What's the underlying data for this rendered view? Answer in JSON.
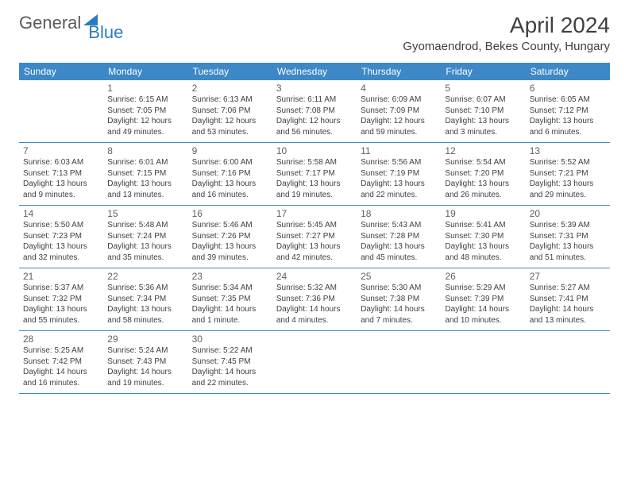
{
  "brand": {
    "part1": "General",
    "part2": "Blue"
  },
  "title": "April 2024",
  "location": "Gyomaendrod, Bekes County, Hungary",
  "day_headers": [
    "Sunday",
    "Monday",
    "Tuesday",
    "Wednesday",
    "Thursday",
    "Friday",
    "Saturday"
  ],
  "colors": {
    "header_bg": "#3d88c7",
    "header_text": "#ffffff",
    "border": "#3d88c7",
    "logo_gray": "#5a5a5a",
    "logo_blue": "#2b7bbf",
    "text": "#404040"
  },
  "typography": {
    "title_fontsize": 28,
    "location_fontsize": 15,
    "header_fontsize": 12,
    "daynum_fontsize": 12,
    "detail_fontsize": 10
  },
  "weeks": [
    [
      null,
      {
        "num": "1",
        "sunrise": "6:15 AM",
        "sunset": "7:05 PM",
        "daylight": "12 hours and 49 minutes."
      },
      {
        "num": "2",
        "sunrise": "6:13 AM",
        "sunset": "7:06 PM",
        "daylight": "12 hours and 53 minutes."
      },
      {
        "num": "3",
        "sunrise": "6:11 AM",
        "sunset": "7:08 PM",
        "daylight": "12 hours and 56 minutes."
      },
      {
        "num": "4",
        "sunrise": "6:09 AM",
        "sunset": "7:09 PM",
        "daylight": "12 hours and 59 minutes."
      },
      {
        "num": "5",
        "sunrise": "6:07 AM",
        "sunset": "7:10 PM",
        "daylight": "13 hours and 3 minutes."
      },
      {
        "num": "6",
        "sunrise": "6:05 AM",
        "sunset": "7:12 PM",
        "daylight": "13 hours and 6 minutes."
      }
    ],
    [
      {
        "num": "7",
        "sunrise": "6:03 AM",
        "sunset": "7:13 PM",
        "daylight": "13 hours and 9 minutes."
      },
      {
        "num": "8",
        "sunrise": "6:01 AM",
        "sunset": "7:15 PM",
        "daylight": "13 hours and 13 minutes."
      },
      {
        "num": "9",
        "sunrise": "6:00 AM",
        "sunset": "7:16 PM",
        "daylight": "13 hours and 16 minutes."
      },
      {
        "num": "10",
        "sunrise": "5:58 AM",
        "sunset": "7:17 PM",
        "daylight": "13 hours and 19 minutes."
      },
      {
        "num": "11",
        "sunrise": "5:56 AM",
        "sunset": "7:19 PM",
        "daylight": "13 hours and 22 minutes."
      },
      {
        "num": "12",
        "sunrise": "5:54 AM",
        "sunset": "7:20 PM",
        "daylight": "13 hours and 26 minutes."
      },
      {
        "num": "13",
        "sunrise": "5:52 AM",
        "sunset": "7:21 PM",
        "daylight": "13 hours and 29 minutes."
      }
    ],
    [
      {
        "num": "14",
        "sunrise": "5:50 AM",
        "sunset": "7:23 PM",
        "daylight": "13 hours and 32 minutes."
      },
      {
        "num": "15",
        "sunrise": "5:48 AM",
        "sunset": "7:24 PM",
        "daylight": "13 hours and 35 minutes."
      },
      {
        "num": "16",
        "sunrise": "5:46 AM",
        "sunset": "7:26 PM",
        "daylight": "13 hours and 39 minutes."
      },
      {
        "num": "17",
        "sunrise": "5:45 AM",
        "sunset": "7:27 PM",
        "daylight": "13 hours and 42 minutes."
      },
      {
        "num": "18",
        "sunrise": "5:43 AM",
        "sunset": "7:28 PM",
        "daylight": "13 hours and 45 minutes."
      },
      {
        "num": "19",
        "sunrise": "5:41 AM",
        "sunset": "7:30 PM",
        "daylight": "13 hours and 48 minutes."
      },
      {
        "num": "20",
        "sunrise": "5:39 AM",
        "sunset": "7:31 PM",
        "daylight": "13 hours and 51 minutes."
      }
    ],
    [
      {
        "num": "21",
        "sunrise": "5:37 AM",
        "sunset": "7:32 PM",
        "daylight": "13 hours and 55 minutes."
      },
      {
        "num": "22",
        "sunrise": "5:36 AM",
        "sunset": "7:34 PM",
        "daylight": "13 hours and 58 minutes."
      },
      {
        "num": "23",
        "sunrise": "5:34 AM",
        "sunset": "7:35 PM",
        "daylight": "14 hours and 1 minute."
      },
      {
        "num": "24",
        "sunrise": "5:32 AM",
        "sunset": "7:36 PM",
        "daylight": "14 hours and 4 minutes."
      },
      {
        "num": "25",
        "sunrise": "5:30 AM",
        "sunset": "7:38 PM",
        "daylight": "14 hours and 7 minutes."
      },
      {
        "num": "26",
        "sunrise": "5:29 AM",
        "sunset": "7:39 PM",
        "daylight": "14 hours and 10 minutes."
      },
      {
        "num": "27",
        "sunrise": "5:27 AM",
        "sunset": "7:41 PM",
        "daylight": "14 hours and 13 minutes."
      }
    ],
    [
      {
        "num": "28",
        "sunrise": "5:25 AM",
        "sunset": "7:42 PM",
        "daylight": "14 hours and 16 minutes."
      },
      {
        "num": "29",
        "sunrise": "5:24 AM",
        "sunset": "7:43 PM",
        "daylight": "14 hours and 19 minutes."
      },
      {
        "num": "30",
        "sunrise": "5:22 AM",
        "sunset": "7:45 PM",
        "daylight": "14 hours and 22 minutes."
      },
      null,
      null,
      null,
      null
    ]
  ],
  "labels": {
    "sunrise": "Sunrise: ",
    "sunset": "Sunset: ",
    "daylight": "Daylight: "
  }
}
